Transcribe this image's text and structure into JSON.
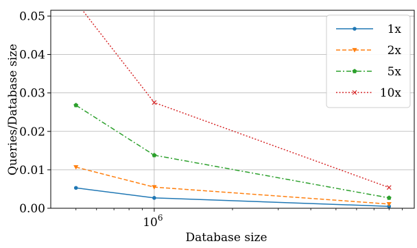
{
  "chart_data": {
    "type": "line",
    "xlabel": "Database size",
    "ylabel": "Queries/Database size",
    "xscale": "log",
    "xlim": [
      400000,
      10000000
    ],
    "ylim": [
      0,
      0.0515
    ],
    "grid": true,
    "legend_position": "top-right",
    "x_ticks": [
      {
        "value": 1000000,
        "label": "10",
        "superscript": "6"
      }
    ],
    "y_ticks": [
      {
        "value": 0.0,
        "label": "0.00"
      },
      {
        "value": 0.01,
        "label": "0.01"
      },
      {
        "value": 0.02,
        "label": "0.02"
      },
      {
        "value": 0.03,
        "label": "0.03"
      },
      {
        "value": 0.04,
        "label": "0.04"
      },
      {
        "value": 0.05,
        "label": "0.05"
      }
    ],
    "series": [
      {
        "name": "1x",
        "color": "#1f77b4",
        "dash": "solid",
        "marker": "circle",
        "x": [
          500000,
          1000000,
          8000000
        ],
        "y": [
          0.0053,
          0.0027,
          0.0005
        ]
      },
      {
        "name": "2x",
        "color": "#ff7f0e",
        "dash": "dashed",
        "marker": "triangle-down",
        "x": [
          500000,
          1000000,
          8000000
        ],
        "y": [
          0.0107,
          0.0055,
          0.0011
        ]
      },
      {
        "name": "5x",
        "color": "#2ca02c",
        "dash": "dashdot",
        "marker": "pentagon",
        "x": [
          500000,
          1000000,
          8000000
        ],
        "y": [
          0.0268,
          0.0138,
          0.0027
        ]
      },
      {
        "name": "10x",
        "color": "#d62728",
        "dash": "dotted",
        "marker": "x",
        "x": [
          500000,
          1000000,
          8000000
        ],
        "y": [
          0.0537,
          0.0275,
          0.0054
        ]
      }
    ]
  }
}
